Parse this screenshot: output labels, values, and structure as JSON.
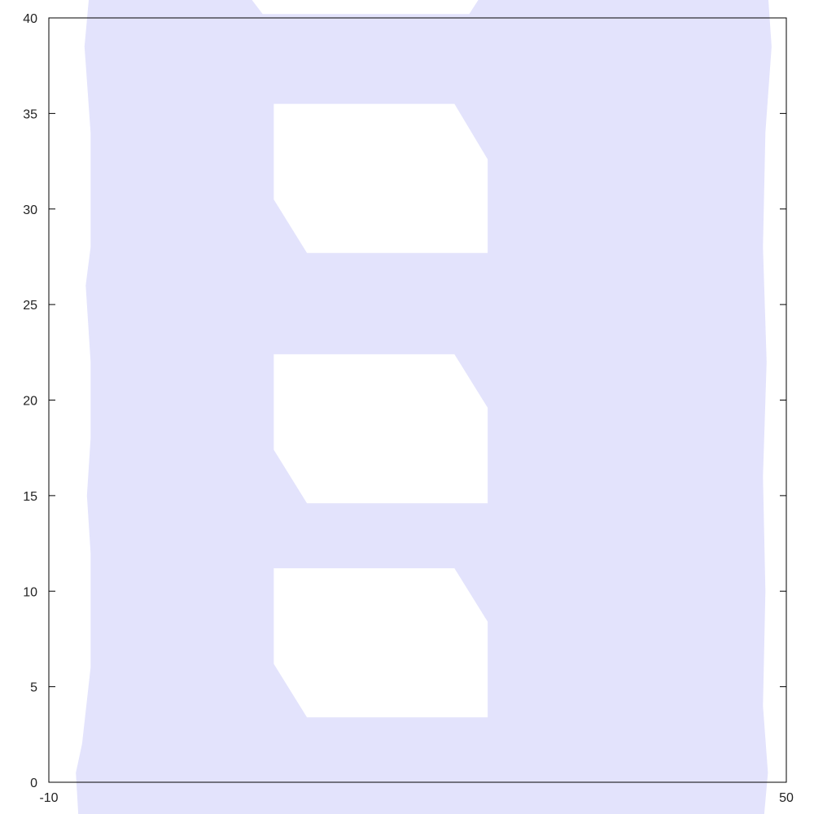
{
  "chart_data": {
    "type": "area",
    "title": "",
    "xlabel": "",
    "ylabel": "",
    "xlim": [
      -10,
      50
    ],
    "ylim": [
      0,
      40
    ],
    "x_tick_labels": [
      "-10",
      "50"
    ],
    "y_tick_labels": [
      "0",
      "5",
      "10",
      "15",
      "20",
      "25",
      "30",
      "35",
      "40"
    ],
    "y_ticks": [
      0,
      5,
      10,
      15,
      20,
      25,
      30,
      35,
      40
    ],
    "grid": false,
    "legend": "none",
    "series": [
      {
        "fill_color": "#e3e3fc",
        "outline": [
          [
            -7.6,
            -1.7
          ],
          [
            48.2,
            -1.7
          ],
          [
            48.5,
            0.5
          ],
          [
            48.1,
            4
          ],
          [
            48.3,
            10
          ],
          [
            48.1,
            16
          ],
          [
            48.4,
            22
          ],
          [
            48.1,
            28
          ],
          [
            48.3,
            34
          ],
          [
            48.8,
            38.5
          ],
          [
            48.5,
            41.3
          ],
          [
            -6.7,
            41.3
          ],
          [
            -7.1,
            38.5
          ],
          [
            -6.6,
            34
          ],
          [
            -6.6,
            28
          ],
          [
            -7.0,
            26
          ],
          [
            -6.6,
            22
          ],
          [
            -6.6,
            18
          ],
          [
            -6.9,
            15
          ],
          [
            -6.6,
            12
          ],
          [
            -6.6,
            6
          ],
          [
            -7.3,
            2
          ],
          [
            -7.8,
            0.5
          ]
        ],
        "holes": [
          [
            [
              8.3,
              3.4
            ],
            [
              25.7,
              3.4
            ],
            [
              25.7,
              8.4
            ],
            [
              23.0,
              11.2
            ],
            [
              8.3,
              11.2
            ],
            [
              8.3,
              6.2
            ],
            [
              11.0,
              3.4
            ]
          ],
          [
            [
              8.3,
              14.6
            ],
            [
              25.7,
              14.6
            ],
            [
              25.7,
              19.6
            ],
            [
              23.0,
              22.4
            ],
            [
              8.3,
              22.4
            ],
            [
              8.3,
              17.4
            ],
            [
              11.0,
              14.6
            ]
          ],
          [
            [
              8.3,
              27.7
            ],
            [
              25.7,
              27.7
            ],
            [
              25.7,
              32.6
            ],
            [
              23.0,
              35.5
            ],
            [
              8.3,
              35.5
            ],
            [
              8.3,
              30.5
            ],
            [
              11.0,
              27.7
            ]
          ]
        ],
        "top_notch": [
          [
            6.1,
            41.3
          ],
          [
            7.4,
            40.2
          ],
          [
            24.2,
            40.2
          ],
          [
            25.3,
            41.3
          ]
        ]
      }
    ]
  }
}
